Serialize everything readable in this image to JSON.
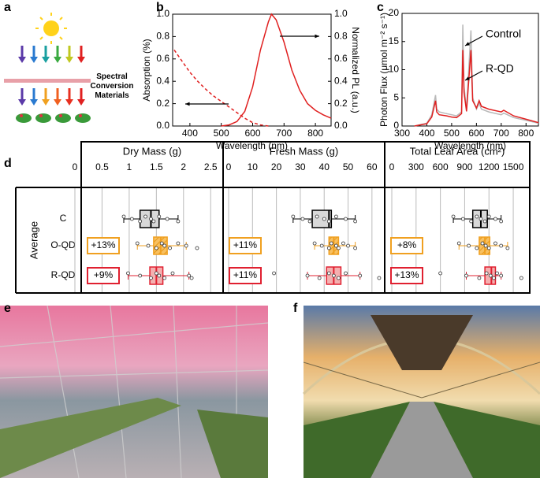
{
  "panel_labels": [
    "a",
    "b",
    "c",
    "d",
    "e",
    "f"
  ],
  "panel_a": {
    "caption": "Spectral Conversion Materials"
  },
  "chart_data": [
    {
      "type": "line",
      "xlabel": "Wavelength (nm)",
      "ylabel": "Absorption (%)",
      "y2label": "Normalized PL (a.u.)",
      "xlim": [
        345,
        850
      ],
      "xticks": [
        400,
        500,
        600,
        700,
        800
      ],
      "ylim": [
        0,
        1.0
      ],
      "yticks": [
        0.0,
        0.2,
        0.4,
        0.6,
        0.8,
        1.0
      ],
      "y2lim": [
        0,
        1.0
      ],
      "y2ticks": [
        0.0,
        0.2,
        0.4,
        0.6,
        0.8,
        1.0
      ],
      "series": [
        {
          "name": "Absorption",
          "color": "#e02020",
          "dashed": true,
          "x": [
            350,
            375,
            400,
            425,
            450,
            475,
            500,
            525,
            550,
            575,
            600,
            625,
            650
          ],
          "values": [
            0.68,
            0.58,
            0.48,
            0.4,
            0.33,
            0.27,
            0.22,
            0.17,
            0.12,
            0.07,
            0.03,
            0.01,
            0
          ]
        },
        {
          "name": "PL",
          "color": "#e02020",
          "axis": "y2",
          "x": [
            500,
            525,
            550,
            575,
            600,
            625,
            650,
            660,
            675,
            700,
            725,
            750,
            775,
            800,
            825,
            850
          ],
          "values": [
            0,
            0.01,
            0.04,
            0.13,
            0.35,
            0.68,
            0.93,
            1.0,
            0.95,
            0.75,
            0.5,
            0.32,
            0.2,
            0.14,
            0.1,
            0.07
          ]
        }
      ]
    },
    {
      "type": "line",
      "xlabel": "Wavelength (nm)",
      "ylabel": "Photon Flux (μmol m⁻² s⁻¹)",
      "xlim": [
        300,
        850
      ],
      "xticks": [
        300,
        400,
        500,
        600,
        700,
        800
      ],
      "ylim": [
        0,
        20
      ],
      "yticks": [
        0,
        5,
        10,
        15,
        20
      ],
      "annotations": [
        "Control",
        "R-QD"
      ],
      "series": [
        {
          "name": "Control",
          "color": "#b8b8b8",
          "x": [
            350,
            400,
            420,
            435,
            440,
            450,
            480,
            500,
            520,
            540,
            545,
            550,
            560,
            578,
            585,
            600,
            611,
            620,
            650,
            700,
            710,
            750,
            800,
            850
          ],
          "values": [
            0,
            0.5,
            2,
            5.5,
            3,
            2.5,
            2.2,
            2,
            1.8,
            2.5,
            18,
            7,
            3,
            17,
            5,
            3,
            4,
            3,
            2.5,
            2,
            2.3,
            1.5,
            1,
            0.5
          ]
        },
        {
          "name": "R-QD",
          "color": "#e02020",
          "x": [
            350,
            400,
            420,
            435,
            440,
            450,
            480,
            500,
            520,
            540,
            545,
            550,
            560,
            578,
            585,
            600,
            611,
            620,
            650,
            700,
            710,
            750,
            800,
            850
          ],
          "values": [
            0,
            0.4,
            1.6,
            4.5,
            2.5,
            2,
            1.8,
            1.6,
            1.5,
            2.2,
            13.5,
            6,
            2.6,
            13.5,
            4.5,
            3.2,
            4.5,
            3.5,
            3,
            2.5,
            2.8,
            1.8,
            1.2,
            0.6
          ]
        }
      ]
    },
    {
      "type": "box",
      "group_label": "Average",
      "categories": [
        "C",
        "O-QD",
        "R-QD"
      ],
      "colors": [
        "#555555",
        "#f0a020",
        "#e02030"
      ],
      "panels": [
        {
          "title": "Dry Mass (g)",
          "xlim": [
            0,
            2.7
          ],
          "xticks": [
            0,
            0.5,
            1,
            1.5,
            2,
            2.5
          ],
          "changes": [
            "+13%",
            "+9%"
          ],
          "boxes": [
            {
              "min": 0.9,
              "q1": 1.2,
              "median": 1.4,
              "q3": 1.55,
              "max": 1.9,
              "points": [
                0.9,
                1.05,
                1.2,
                1.3,
                1.4,
                1.45,
                1.55,
                1.7,
                1.9
              ]
            },
            {
              "min": 1.15,
              "q1": 1.45,
              "median": 1.58,
              "q3": 1.7,
              "max": 2.05,
              "points": [
                1.15,
                1.35,
                1.5,
                1.6,
                1.65,
                1.75,
                1.9,
                2.05,
                2.25
              ]
            },
            {
              "min": 0.98,
              "q1": 1.38,
              "median": 1.5,
              "q3": 1.62,
              "max": 2.1,
              "points": [
                0.98,
                1.2,
                1.4,
                1.5,
                1.55,
                1.65,
                1.8,
                2.1,
                2.15
              ]
            }
          ]
        },
        {
          "title": "Fresh Mass (g)",
          "xlim": [
            0,
            65
          ],
          "xticks": [
            0,
            10,
            20,
            30,
            40,
            50,
            60
          ],
          "changes": [
            "+11%",
            "+11%"
          ],
          "boxes": [
            {
              "min": 27,
              "q1": 35,
              "median": 42,
              "q3": 43,
              "max": 53,
              "points": [
                27,
                31,
                34,
                37,
                40,
                42,
                45,
                49,
                53
              ]
            },
            {
              "min": 36,
              "q1": 42,
              "median": 44,
              "q3": 46,
              "max": 53,
              "points": [
                36,
                39,
                42,
                43,
                45,
                46,
                48,
                50,
                53
              ]
            },
            {
              "min": 33,
              "q1": 41,
              "median": 44,
              "q3": 47,
              "max": 55,
              "points": [
                19,
                33,
                38,
                42,
                44,
                46,
                49,
                55,
                63
              ]
            }
          ]
        },
        {
          "title": "Total Leaf Area (cm²)",
          "xlim": [
            0,
            1700
          ],
          "xticks": [
            0,
            300,
            600,
            900,
            1200,
            1500
          ],
          "changes": [
            "+8%",
            "+13%"
          ],
          "boxes": [
            {
              "min": 760,
              "q1": 1000,
              "median": 1100,
              "q3": 1180,
              "max": 1350,
              "points": [
                760,
                880,
                980,
                1050,
                1100,
                1150,
                1200,
                1280,
                1350
              ]
            },
            {
              "min": 830,
              "q1": 1080,
              "median": 1150,
              "q3": 1210,
              "max": 1430,
              "points": [
                830,
                950,
                1050,
                1120,
                1160,
                1200,
                1280,
                1350,
                1430
              ]
            },
            {
              "min": 920,
              "q1": 1150,
              "median": 1230,
              "q3": 1280,
              "max": 1350,
              "points": [
                600,
                920,
                1080,
                1170,
                1220,
                1260,
                1300,
                1350,
                1600
              ]
            }
          ]
        }
      ]
    }
  ]
}
